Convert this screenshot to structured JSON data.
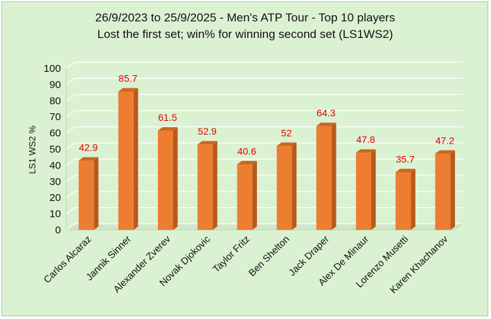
{
  "chart_data": {
    "type": "bar",
    "title": "26/9/2023 to 25/9/2025 - Men's ATP Tour - Top 10 players",
    "subtitle": "Lost the first set; win% for winning second set (LS1WS2)",
    "ylabel": "LS1 WS2 %",
    "xlabel": "",
    "ylim": [
      0,
      100
    ],
    "yticks": [
      0,
      10,
      20,
      30,
      40,
      50,
      60,
      70,
      80,
      90,
      100
    ],
    "grid": true,
    "categories": [
      "Carlos Alcaraz",
      "Jannik Sinner",
      "Alexander Zverev",
      "Novak Djokovic",
      "Taylor Fritz",
      "Ben Shelton",
      "Jack Draper",
      "Alex De Minaur",
      "Lorenzo Musetti",
      "Karen Khachanov"
    ],
    "values": [
      42.9,
      85.7,
      61.5,
      52.9,
      40.6,
      52,
      64.3,
      47.8,
      35.7,
      47.2
    ],
    "data_labels": [
      "42.9",
      "85.7",
      "61.5",
      "52.9",
      "40.6",
      "52",
      "64.3",
      "47.8",
      "35.7",
      "47.2"
    ],
    "colors": {
      "bar_front": "#ed7d31",
      "bar_side": "#b85a1c",
      "bar_top": "#c9671f",
      "background": "#dbf2d2",
      "data_label": "#e00000",
      "gridline": "#ffffff"
    }
  }
}
